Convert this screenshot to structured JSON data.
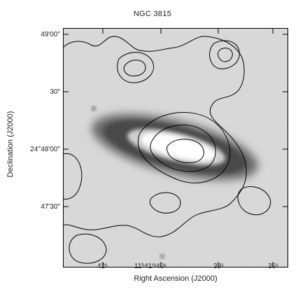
{
  "title": "NGC 3815",
  "xlabel": "Right Ascension (J2000)",
  "ylabel": "Declination (J2000)",
  "yticks": [
    "49'00\"",
    "30\"",
    "24°48'00\"",
    "47'30\""
  ],
  "xticks": [
    "42ˢ",
    "11ʰ41ᵐ40ˢ",
    "38ˢ",
    "36ˢ"
  ]
}
